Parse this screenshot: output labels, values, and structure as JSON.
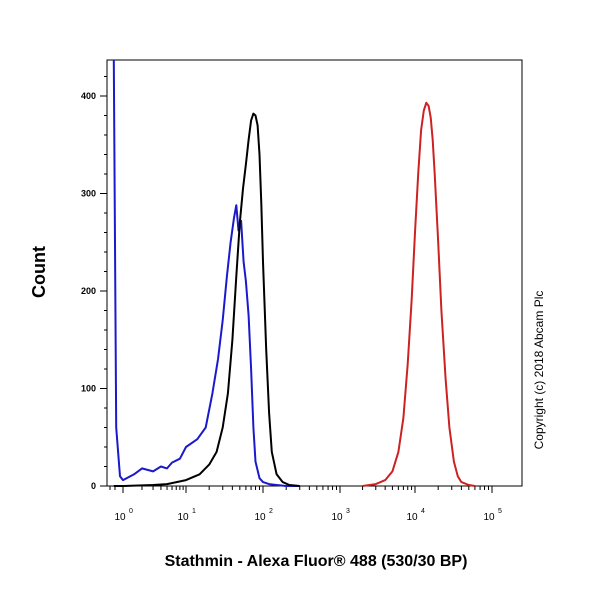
{
  "chart_data": {
    "type": "line",
    "title": "",
    "xlabel": "Stathmin - Alexa Fluor® 488 (530/30 BP)",
    "ylabel": "Count",
    "x_scale": "biexponential (log-like)",
    "xlim": [
      0,
      200000
    ],
    "ylim": [
      0,
      450
    ],
    "y_ticks": [
      0,
      100,
      200,
      300,
      400
    ],
    "x_ticks": [
      {
        "base": "10",
        "exp": "0",
        "value": 1
      },
      {
        "base": "10",
        "exp": "1",
        "value": 10
      },
      {
        "base": "10",
        "exp": "2",
        "value": 100
      },
      {
        "base": "10",
        "exp": "3",
        "value": 1000
      },
      {
        "base": "10",
        "exp": "4",
        "value": 10000
      },
      {
        "base": "10",
        "exp": "5",
        "value": 100000
      }
    ],
    "grid": false,
    "legend": "none",
    "series": [
      {
        "color": "#1a1acc",
        "x": [
          0.5,
          0.6,
          0.8,
          1,
          1.5,
          2,
          3,
          4,
          5,
          6,
          8,
          10,
          14,
          18,
          22,
          26,
          30,
          34,
          38,
          42,
          45,
          48,
          52,
          56,
          60,
          65,
          70,
          75,
          80,
          90,
          100,
          120,
          150,
          200,
          300
        ],
        "y": [
          440,
          60,
          10,
          6,
          12,
          18,
          15,
          20,
          18,
          24,
          28,
          40,
          48,
          60,
          95,
          130,
          170,
          215,
          250,
          275,
          288,
          262,
          272,
          230,
          210,
          175,
          120,
          60,
          25,
          8,
          4,
          2,
          1,
          0,
          0
        ]
      },
      {
        "color": "#000000",
        "x": [
          0.5,
          1,
          3,
          5,
          10,
          15,
          20,
          25,
          30,
          35,
          40,
          45,
          50,
          55,
          60,
          65,
          70,
          75,
          80,
          85,
          90,
          95,
          100,
          110,
          120,
          130,
          150,
          180,
          220,
          300
        ],
        "y": [
          0,
          0,
          1,
          2,
          6,
          12,
          22,
          35,
          60,
          95,
          150,
          215,
          270,
          305,
          330,
          355,
          375,
          382,
          380,
          370,
          340,
          290,
          230,
          140,
          75,
          35,
          12,
          4,
          1,
          0
        ]
      },
      {
        "color": "#cc2222",
        "x": [
          2000,
          3000,
          4000,
          5000,
          6000,
          7000,
          8000,
          9000,
          10000,
          11000,
          12000,
          13000,
          14000,
          15000,
          16000,
          17000,
          18000,
          20000,
          22000,
          25000,
          28000,
          32000,
          36000,
          40000,
          50000,
          60000
        ],
        "y": [
          0,
          2,
          6,
          15,
          35,
          70,
          125,
          190,
          260,
          320,
          365,
          385,
          393,
          390,
          378,
          355,
          320,
          250,
          180,
          110,
          60,
          25,
          10,
          4,
          1,
          0
        ]
      }
    ]
  },
  "copyright": "Copyright (c) 2018 Abcam Plc"
}
